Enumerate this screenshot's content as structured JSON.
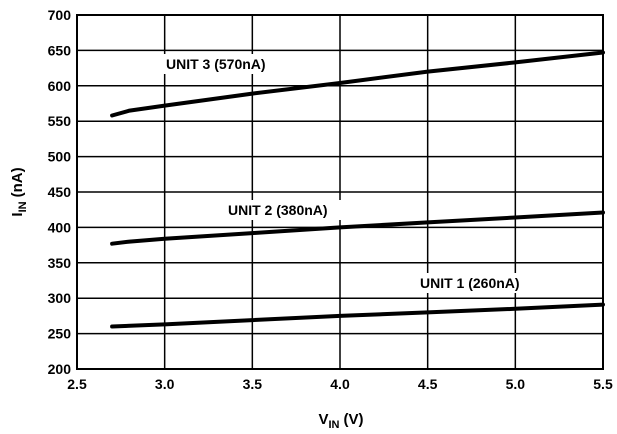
{
  "chart_data": {
    "type": "line",
    "title": "",
    "xlabel": {
      "main": "V",
      "sub": "IN",
      "unit": "(V)"
    },
    "ylabel": {
      "main": "I",
      "sub": "IN",
      "unit": "(nA)"
    },
    "xlim": [
      2.5,
      5.5
    ],
    "ylim": [
      200,
      700
    ],
    "xticks": [
      "2.5",
      "3.0",
      "3.5",
      "4.0",
      "4.5",
      "5.0",
      "5.5"
    ],
    "yticks": [
      "200",
      "250",
      "300",
      "350",
      "400",
      "450",
      "500",
      "550",
      "600",
      "650",
      "700"
    ],
    "grid": true,
    "series": [
      {
        "name": "UNIT 3 (570nA)",
        "color": "#000000",
        "x": [
          2.7,
          2.8,
          3.0,
          3.5,
          4.0,
          4.5,
          5.0,
          5.5
        ],
        "y": [
          558,
          565,
          572,
          589,
          604,
          620,
          633,
          647
        ]
      },
      {
        "name": "UNIT 2 (380nA)",
        "color": "#000000",
        "x": [
          2.7,
          2.8,
          3.0,
          3.5,
          4.0,
          4.5,
          5.0,
          5.5
        ],
        "y": [
          377,
          380,
          384,
          392,
          400,
          407,
          414,
          421
        ]
      },
      {
        "name": "UNIT 1 (260nA)",
        "color": "#000000",
        "x": [
          2.7,
          3.0,
          3.5,
          4.0,
          4.5,
          5.0,
          5.5
        ],
        "y": [
          260,
          263,
          269,
          275,
          280,
          285,
          291
        ]
      }
    ]
  }
}
